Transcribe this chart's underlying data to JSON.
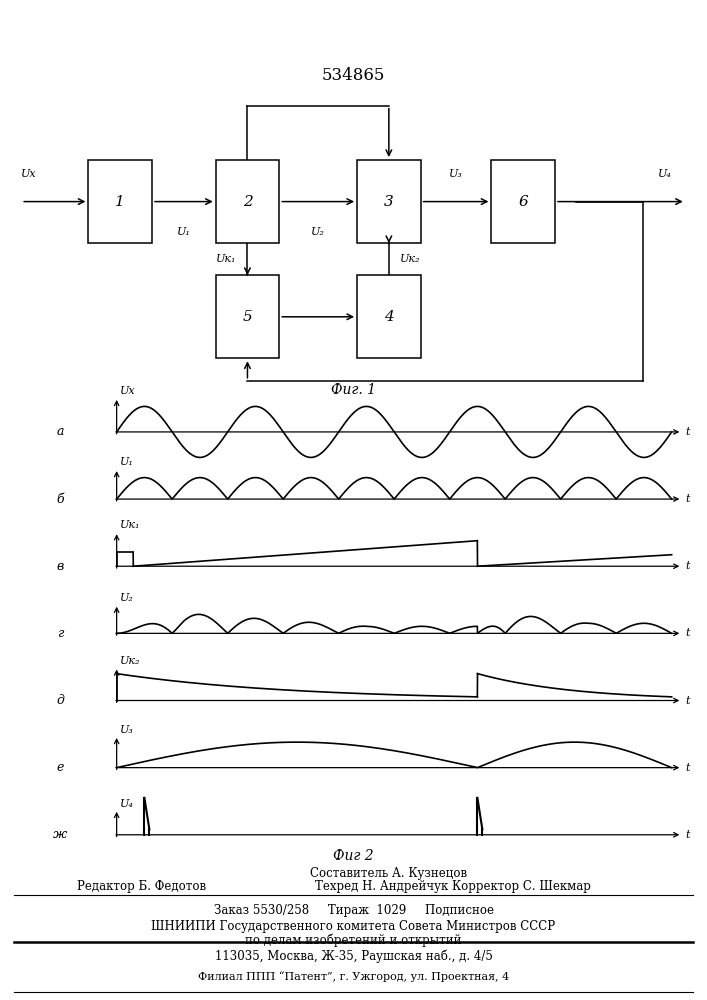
{
  "patent_number": "534865",
  "fig1_caption": "Фиг. 1",
  "fig2_caption": "Фиг 2",
  "footer_line1": "Составитель А. Кузнецов",
  "footer_line2a": "Редактор Б. Федотов",
  "footer_line2b": "Техред Н. Андрейчук Корректор С. Шекмар",
  "footer_line3": "Заказ 5530/258     Тираж  1029     Подписное",
  "footer_line4": "ШНИИПИ Государственного комитета Совета Министров СССР",
  "footer_line5": "по делам изобретений и открытий",
  "footer_line6": "113035, Москва, Ж-35, Раушская наб., д. 4/5",
  "footer_line7": "Филиал ППП “Патент”, г. Ужгород, ул. Проектная, 4",
  "bg_color": "#ffffff",
  "line_color": "#000000"
}
